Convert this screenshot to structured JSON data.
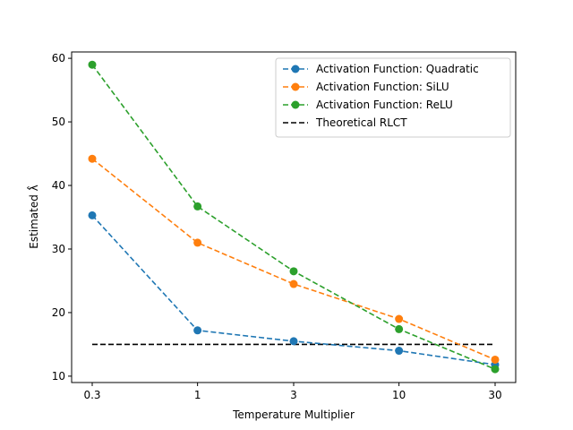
{
  "chart_data": {
    "type": "line",
    "x": [
      0.3,
      1,
      3,
      10,
      30
    ],
    "x_tick_labels": [
      "0.3",
      "1",
      "3",
      "10",
      "30"
    ],
    "x_scale": "log",
    "xlabel": "Temperature Multiplier",
    "ylabel": "Estimated λ̂",
    "ylim": [
      9,
      61
    ],
    "y_ticks": [
      10,
      20,
      30,
      40,
      50,
      60
    ],
    "grid": false,
    "legend_position": "top-right",
    "series": [
      {
        "name": "Activation Function: Quadratic",
        "color": "#1f77b4",
        "style": "dashed",
        "marker": "circle",
        "values": [
          35.3,
          17.2,
          15.5,
          14.0,
          11.8
        ]
      },
      {
        "name": "Activation Function: SiLU",
        "color": "#ff7f0e",
        "style": "dashed",
        "marker": "circle",
        "values": [
          44.2,
          31.0,
          24.5,
          19.0,
          12.6
        ]
      },
      {
        "name": "Activation Function: ReLU",
        "color": "#2ca02c",
        "style": "dashed",
        "marker": "circle",
        "values": [
          59.0,
          36.7,
          26.5,
          17.4,
          11.1
        ]
      }
    ],
    "reference_lines": [
      {
        "name": "Theoretical RLCT",
        "color": "#000000",
        "style": "dashed",
        "y": 15.0,
        "x_range": [
          0.3,
          30
        ]
      }
    ]
  }
}
